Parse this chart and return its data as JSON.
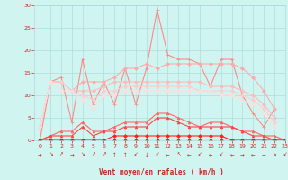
{
  "x": [
    0,
    1,
    2,
    3,
    4,
    5,
    6,
    7,
    8,
    9,
    10,
    11,
    12,
    13,
    14,
    15,
    16,
    17,
    18,
    19,
    20,
    21,
    22,
    23
  ],
  "series": [
    {
      "name": "max_gust",
      "color": "#ff8888",
      "lw": 0.8,
      "marker": "+",
      "markersize": 3,
      "y": [
        0,
        13,
        14,
        4,
        18,
        8,
        13,
        8,
        16,
        8,
        16,
        29,
        19,
        18,
        18,
        17,
        12,
        18,
        18,
        10,
        6,
        3,
        7,
        null
      ]
    },
    {
      "name": "avg_high1",
      "color": "#ffaaaa",
      "lw": 0.8,
      "marker": "D",
      "markersize": 2,
      "y": [
        3,
        13,
        13,
        11,
        13,
        13,
        13,
        14,
        16,
        16,
        17,
        16,
        17,
        17,
        17,
        17,
        17,
        17,
        17,
        16,
        14,
        11,
        7,
        null
      ]
    },
    {
      "name": "avg_high2",
      "color": "#ffbbbb",
      "lw": 0.8,
      "marker": "D",
      "markersize": 2,
      "y": [
        3,
        13,
        13,
        11,
        11,
        11,
        12,
        13,
        13,
        13,
        13,
        13,
        13,
        13,
        13,
        13,
        12,
        12,
        12,
        11,
        10,
        8,
        5,
        null
      ]
    },
    {
      "name": "avg_high3",
      "color": "#ffcccc",
      "lw": 0.8,
      "marker": "D",
      "markersize": 2,
      "y": [
        3,
        13,
        13,
        11,
        10,
        9,
        11,
        11,
        12,
        12,
        12,
        12,
        12,
        12,
        12,
        11,
        11,
        11,
        11,
        10,
        9,
        7,
        4,
        null
      ]
    },
    {
      "name": "avg_low1",
      "color": "#ffdddd",
      "lw": 0.8,
      "marker": "D",
      "markersize": 2,
      "y": [
        3,
        13,
        11,
        11,
        9,
        7,
        10,
        10,
        11,
        11,
        11,
        11,
        11,
        11,
        11,
        11,
        11,
        10,
        10,
        9,
        8,
        6,
        3,
        null
      ]
    },
    {
      "name": "mid_line",
      "color": "#ff6666",
      "lw": 0.8,
      "marker": "^",
      "markersize": 2,
      "y": [
        0,
        1,
        2,
        2,
        4,
        2,
        2,
        3,
        4,
        4,
        4,
        6,
        6,
        5,
        4,
        3,
        4,
        4,
        3,
        2,
        2,
        1,
        1,
        0
      ]
    },
    {
      "name": "low_line",
      "color": "#ff4444",
      "lw": 0.8,
      "marker": "^",
      "markersize": 2,
      "y": [
        0,
        1,
        1,
        1,
        3,
        1,
        2,
        2,
        3,
        3,
        3,
        5,
        5,
        4,
        3,
        3,
        3,
        3,
        3,
        2,
        1,
        1,
        0,
        0
      ]
    },
    {
      "name": "min_line",
      "color": "#ff2222",
      "lw": 0.8,
      "marker": "D",
      "markersize": 2,
      "y": [
        0,
        0,
        0,
        0,
        0,
        0,
        0,
        1,
        1,
        1,
        1,
        1,
        1,
        1,
        1,
        1,
        1,
        1,
        0,
        0,
        0,
        0,
        0,
        0
      ]
    },
    {
      "name": "zero_line",
      "color": "#cc2222",
      "lw": 0.8,
      "marker": "D",
      "markersize": 2,
      "y": [
        0,
        0,
        0,
        0,
        0,
        0,
        0,
        0,
        0,
        0,
        0,
        0,
        0,
        0,
        0,
        0,
        0,
        0,
        0,
        0,
        0,
        0,
        0,
        0
      ]
    }
  ],
  "arrows": [
    "→",
    "↘",
    "↗",
    "→",
    "↘",
    "↗",
    "↗",
    "↑",
    "↑",
    "↙",
    "↓",
    "↙",
    "←",
    "↖",
    "←",
    "↙",
    "←",
    "↙",
    "←",
    "→",
    "←",
    "→",
    "↘",
    "↙"
  ],
  "xlabel": "Vent moyen/en rafales ( km/h )",
  "ylim": [
    0,
    30
  ],
  "xlim": [
    -0.5,
    23
  ],
  "yticks": [
    0,
    5,
    10,
    15,
    20,
    25,
    30
  ],
  "xticks": [
    0,
    1,
    2,
    3,
    4,
    5,
    6,
    7,
    8,
    9,
    10,
    11,
    12,
    13,
    14,
    15,
    16,
    17,
    18,
    19,
    20,
    21,
    22,
    23
  ],
  "bg_color": "#d0f5f0",
  "grid_color": "#aadddd",
  "tick_color": "#cc2222",
  "label_color": "#cc2222"
}
